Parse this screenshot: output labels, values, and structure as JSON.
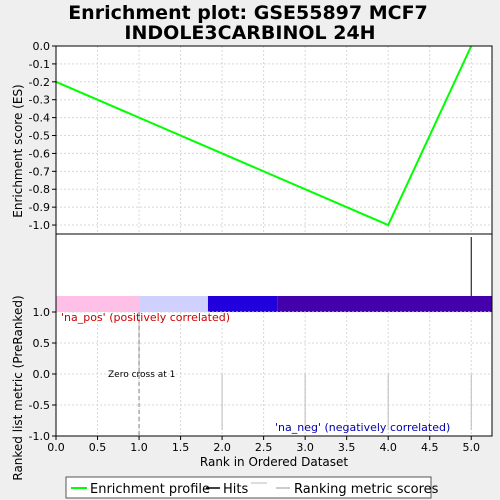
{
  "title_line1": "Enrichment plot: GSE55897 MCF7",
  "title_line2": "INDOLE3CARBINOL 24H",
  "colors": {
    "background": "#efefef",
    "plot_bg": "#ffffff",
    "es_line": "#00ff00",
    "hits": "#000000",
    "pos_label": "#cc0000",
    "neg_label": "#0000aa",
    "grid": "#d8d8d8",
    "metric_bars": "#bbbbbb",
    "zero_cross_line": "#808080"
  },
  "chart_data": [
    {
      "type": "line",
      "name": "enrichment-profile",
      "ylabel": "Enrichment score (ES)",
      "ylim": [
        -1.05,
        0.0
      ],
      "yticks": [
        0.0,
        -0.1,
        -0.2,
        -0.3,
        -0.4,
        -0.5,
        -0.6,
        -0.7,
        -0.8,
        -0.9,
        -1.0
      ],
      "ytick_labels": [
        "0.0",
        "-0.1",
        "-0.2",
        "-0.3",
        "-0.4",
        "-0.5",
        "-0.6",
        "-0.7",
        "-0.8",
        "-0.9",
        "-1.0"
      ],
      "xlim": [
        0.0,
        5.25
      ],
      "x": [
        0.0,
        4.0,
        5.0
      ],
      "y": [
        -0.2,
        -1.0,
        0.0
      ],
      "grid": true
    },
    {
      "type": "bar",
      "name": "hits",
      "positions": [
        5.0
      ]
    },
    {
      "type": "heatmap",
      "name": "ranking-colorbar",
      "segments": [
        {
          "from": 0.0,
          "to": 1.0,
          "color": "#ffc0e8"
        },
        {
          "from": 1.0,
          "to": 1.83,
          "color": "#d0d0ff"
        },
        {
          "from": 1.83,
          "to": 2.67,
          "color": "#2200dd"
        },
        {
          "from": 2.67,
          "to": 5.25,
          "color": "#4400aa"
        }
      ]
    },
    {
      "type": "bar",
      "name": "ranked-list-metric",
      "ylabel": "Ranked list metric (PreRanked)",
      "xlabel": "Rank in Ordered Dataset",
      "xlim": [
        0.0,
        5.25
      ],
      "ylim": [
        -1.0,
        1.0
      ],
      "xticks": [
        0.0,
        0.5,
        1.0,
        1.5,
        2.0,
        2.5,
        3.0,
        3.5,
        4.0,
        4.5,
        5.0
      ],
      "xtick_labels": [
        "0.0",
        "0.5",
        "1.0",
        "1.5",
        "2.0",
        "2.5",
        "3.0",
        "3.5",
        "4.0",
        "4.5",
        "5.0"
      ],
      "yticks": [
        1.0,
        0.5,
        0.0,
        -0.5,
        -1.0
      ],
      "ytick_labels": [
        "1.0",
        "0.5",
        "0.0",
        "-0.5",
        "-1.0"
      ],
      "bars": [
        {
          "x": 1.0,
          "value": 1.0
        },
        {
          "x": 2.0,
          "value": 0.0
        },
        {
          "x": 3.0,
          "value": 0.0
        },
        {
          "x": 4.0,
          "value": 0.0
        },
        {
          "x": 5.0,
          "value": 0.0
        }
      ],
      "zero_cross_x": 1.0,
      "annotations": {
        "pos": "'na_pos' (positively correlated)",
        "neg": "'na_neg' (negatively correlated)",
        "zero_cross": "Zero cross at 1"
      },
      "grid": true
    }
  ],
  "legend": {
    "items": [
      {
        "label": "Enrichment profile",
        "color": "#00ff00"
      },
      {
        "label": "Hits",
        "color": "#000000"
      },
      {
        "label": "Ranking metric scores",
        "color": "#bbbbbb"
      }
    ]
  }
}
